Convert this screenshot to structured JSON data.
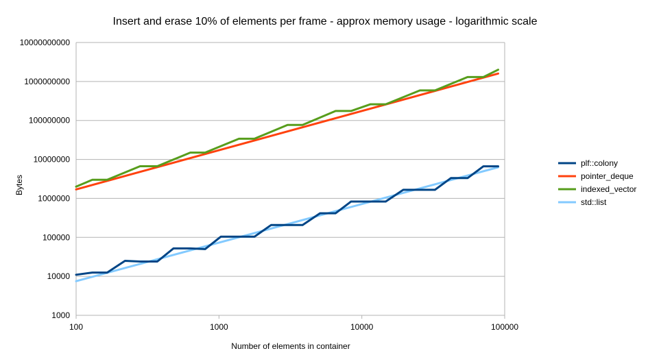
{
  "chart_data": {
    "type": "line",
    "title": "Insert and erase 10% of elements per frame - approx memory usage - logarithmic scale",
    "xlabel": "Number of elements in container",
    "ylabel": "Bytes",
    "xscale": "log",
    "yscale": "log",
    "xlim": [
      100,
      100000
    ],
    "ylim": [
      1000,
      10000000000
    ],
    "x_ticks": [
      "100",
      "1000",
      "10000",
      "100000"
    ],
    "y_ticks": [
      "1000",
      "10000",
      "100000",
      "1000000",
      "10000000",
      "100000000",
      "1000000000",
      "10000000000"
    ],
    "grid": "horizontal",
    "legend_position": "right",
    "series": [
      {
        "name": "plf::colony",
        "color": "#004586",
        "points": [
          [
            100,
            11000
          ],
          [
            130,
            12500
          ],
          [
            165,
            12500
          ],
          [
            220,
            25000
          ],
          [
            280,
            24000
          ],
          [
            370,
            24000
          ],
          [
            480,
            52000
          ],
          [
            630,
            52000
          ],
          [
            800,
            50000
          ],
          [
            1030,
            104000
          ],
          [
            1380,
            104000
          ],
          [
            1770,
            104000
          ],
          [
            2320,
            208000
          ],
          [
            3020,
            208000
          ],
          [
            3850,
            208000
          ],
          [
            5100,
            415000
          ],
          [
            6550,
            415000
          ],
          [
            8400,
            830000
          ],
          [
            11500,
            830000
          ],
          [
            14700,
            830000
          ],
          [
            19500,
            1660000
          ],
          [
            25500,
            1660000
          ],
          [
            32500,
            1660000
          ],
          [
            42000,
            3320000
          ],
          [
            55000,
            3320000
          ],
          [
            71000,
            6650000
          ],
          [
            90000,
            6650000
          ]
        ]
      },
      {
        "name": "pointer_deque",
        "color": "#ff420e",
        "points": [
          [
            100,
            1700000
          ],
          [
            90000,
            1600000000
          ]
        ]
      },
      {
        "name": "indexed_vector",
        "color": "#579d1c",
        "points": [
          [
            100,
            2000000
          ],
          [
            130,
            3000000
          ],
          [
            165,
            3000000
          ],
          [
            280,
            6700000
          ],
          [
            370,
            6700000
          ],
          [
            630,
            15000000
          ],
          [
            800,
            15000000
          ],
          [
            1380,
            34000000
          ],
          [
            1770,
            34000000
          ],
          [
            3020,
            77000000
          ],
          [
            3850,
            77000000
          ],
          [
            6550,
            175000000
          ],
          [
            8400,
            175000000
          ],
          [
            11500,
            260000000
          ],
          [
            14700,
            260000000
          ],
          [
            25500,
            590000000
          ],
          [
            32500,
            590000000
          ],
          [
            55000,
            1300000000
          ],
          [
            71000,
            1300000000
          ],
          [
            90000,
            2000000000
          ]
        ]
      },
      {
        "name": "std::list",
        "color": "#83caff",
        "points": [
          [
            100,
            7500
          ],
          [
            90000,
            6300000
          ]
        ]
      }
    ]
  }
}
